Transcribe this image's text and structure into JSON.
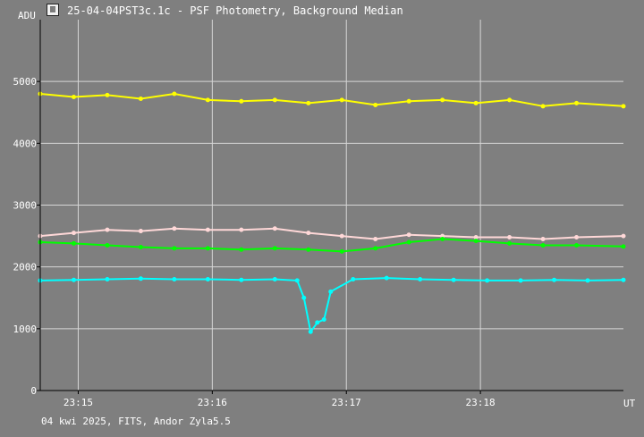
{
  "window": {
    "icon": "chart-window-icon",
    "title": "25-04-04PST3c.1c - PSF Photometry, Background Median"
  },
  "footer": {
    "text": "04 kwi 2025, FITS, Andor Zyla5.5"
  },
  "colors": {
    "background": "#7f7f7f",
    "grid": "#d6d6d6",
    "axis": "#000000",
    "text": "#ffffff"
  },
  "chart_data": {
    "type": "line",
    "title": "",
    "ylabel": "ADU",
    "xlabel": "UT",
    "ylim": [
      0,
      6000
    ],
    "xlim": [
      "23:14:43",
      "23:19:04"
    ],
    "grid": true,
    "y_ticks": [
      {
        "value": 0,
        "label": "0"
      },
      {
        "value": 1000,
        "label": "1000"
      },
      {
        "value": 2000,
        "label": "2000"
      },
      {
        "value": 3000,
        "label": "3000"
      },
      {
        "value": 4000,
        "label": "4000"
      },
      {
        "value": 5000,
        "label": "5000"
      }
    ],
    "x_ticks": [
      {
        "value": "23:15",
        "label": "23:15"
      },
      {
        "value": "23:16",
        "label": "23:16"
      },
      {
        "value": "23:17",
        "label": "23:17"
      },
      {
        "value": "23:18",
        "label": "23:18"
      }
    ],
    "series": [
      {
        "color": "#ffff00",
        "x": [
          "23:14:43",
          "23:14:58",
          "23:15:13",
          "23:15:28",
          "23:15:43",
          "23:15:58",
          "23:16:13",
          "23:16:28",
          "23:16:43",
          "23:16:58",
          "23:17:13",
          "23:17:28",
          "23:17:43",
          "23:17:58",
          "23:18:13",
          "23:18:28",
          "23:18:43",
          "23:19:04"
        ],
        "values": [
          4800,
          4750,
          4780,
          4720,
          4800,
          4700,
          4680,
          4700,
          4650,
          4700,
          4620,
          4680,
          4700,
          4650,
          4700,
          4600,
          4650,
          4600
        ]
      },
      {
        "color": "#ffd8d8",
        "x": [
          "23:14:43",
          "23:14:58",
          "23:15:13",
          "23:15:28",
          "23:15:43",
          "23:15:58",
          "23:16:13",
          "23:16:28",
          "23:16:43",
          "23:16:58",
          "23:17:13",
          "23:17:28",
          "23:17:43",
          "23:17:58",
          "23:18:13",
          "23:18:28",
          "23:18:43",
          "23:19:04"
        ],
        "values": [
          2500,
          2550,
          2600,
          2580,
          2620,
          2600,
          2600,
          2620,
          2550,
          2500,
          2450,
          2520,
          2500,
          2480,
          2480,
          2450,
          2480,
          2500
        ]
      },
      {
        "color": "#00ff00",
        "x": [
          "23:14:43",
          "23:14:58",
          "23:15:13",
          "23:15:28",
          "23:15:43",
          "23:15:58",
          "23:16:13",
          "23:16:28",
          "23:16:43",
          "23:16:58",
          "23:17:13",
          "23:17:28",
          "23:17:43",
          "23:17:58",
          "23:18:13",
          "23:18:28",
          "23:18:43",
          "23:19:04"
        ],
        "values": [
          2400,
          2380,
          2350,
          2320,
          2300,
          2300,
          2280,
          2300,
          2280,
          2250,
          2300,
          2400,
          2450,
          2420,
          2380,
          2350,
          2350,
          2330
        ]
      },
      {
        "color": "#00ffff",
        "x": [
          "23:14:43",
          "23:14:58",
          "23:15:13",
          "23:15:28",
          "23:15:43",
          "23:15:58",
          "23:16:13",
          "23:16:28",
          "23:16:38",
          "23:16:41",
          "23:16:44",
          "23:16:47",
          "23:16:50",
          "23:16:53",
          "23:17:03",
          "23:17:18",
          "23:17:33",
          "23:17:48",
          "23:18:03",
          "23:18:18",
          "23:18:33",
          "23:18:48",
          "23:19:04"
        ],
        "values": [
          1780,
          1790,
          1800,
          1810,
          1800,
          1800,
          1790,
          1800,
          1780,
          1500,
          950,
          1100,
          1150,
          1600,
          1800,
          1820,
          1800,
          1790,
          1780,
          1780,
          1790,
          1780,
          1790
        ]
      }
    ]
  }
}
